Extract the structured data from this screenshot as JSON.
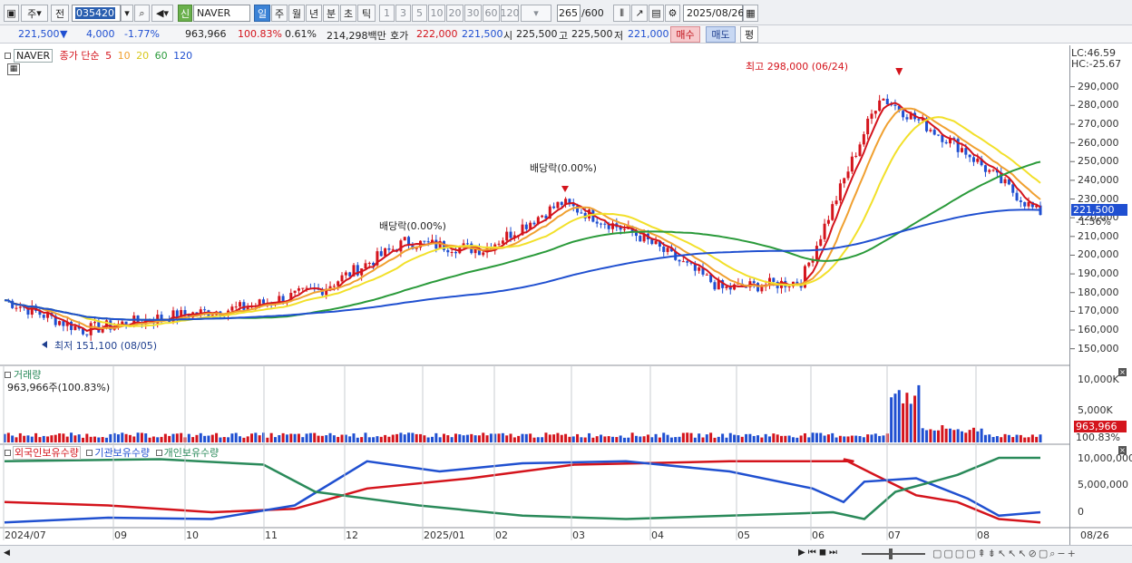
{
  "toolbar": {
    "period_main": "주",
    "prev_label": "전",
    "code": "035420",
    "stock_badge": "신",
    "stock_name": "NAVER",
    "period_tabs": [
      "일",
      "주",
      "월",
      "년",
      "분",
      "초",
      "틱"
    ],
    "intervals": [
      "1",
      "3",
      "5",
      "10",
      "20",
      "30",
      "60",
      "120"
    ],
    "count": "265",
    "count_total": "/600",
    "date": "2025/08/26"
  },
  "info": {
    "price": "221,500",
    "change_arrow": "▼",
    "change": "4,000",
    "change_pct": "-1.77%",
    "volume": "963,966",
    "volume_ratio": "100.83%",
    "turnover_pct": "0.61%",
    "amount": "214,298백만",
    "hoga_label": "호가",
    "ask": "222,000",
    "bid": "221,500",
    "open_label": "시",
    "open": "225,500",
    "high_label": "고",
    "high": "225,500",
    "low_label": "저",
    "low": "221,000",
    "buy_label": "매수",
    "sell_label": "매도",
    "eval_label": "평"
  },
  "price_panel": {
    "stock": "NAVER",
    "ma_label": "종가 단순",
    "ma_periods": [
      "5",
      "10",
      "20",
      "60",
      "120"
    ],
    "ma_colors": [
      "#d4141c",
      "#f0a030",
      "#f2e02a",
      "#2a9a3a",
      "#2050d0"
    ],
    "lc": "LC:46.59",
    "hc": "HC:-25.67",
    "high_annot": "최고 298,000 (06/24)",
    "low_annot": "최저 151,100 (08/05)",
    "dividend1": "배당락(0.00%)",
    "dividend2": "배당락(0.00%)",
    "current_price_tag": "221,500",
    "current_pct_tag": "-1.56%",
    "y_ticks": [
      "290,000",
      "280,000",
      "270,000",
      "260,000",
      "250,000",
      "240,000",
      "230,000",
      "220,000",
      "210,000",
      "200,000",
      "190,000",
      "180,000",
      "170,000",
      "160,000",
      "150,000"
    ]
  },
  "volume_panel": {
    "title": "거래량",
    "value": "963,966주(100.83%)",
    "y_ticks": [
      "10,000K",
      "5,000K"
    ],
    "tag_value": "963,966",
    "tag_pct": "100.83%"
  },
  "holding_panel": {
    "series_labels": [
      "외국인보유수량",
      "기관보유수량",
      "개인보유수량"
    ],
    "y_ticks": [
      "10,000,000",
      "5,000,000",
      "0"
    ]
  },
  "x_axis": [
    "2024/07",
    "09",
    "10",
    "11",
    "12",
    "2025/01",
    "02",
    "03",
    "04",
    "05",
    "06",
    "07",
    "08",
    "08/26"
  ],
  "colors": {
    "up": "#d4141c",
    "down": "#1f4fd1",
    "foreign": "#2050d0",
    "institution": "#d4141c",
    "individual": "#2a8a5a"
  },
  "chart_data": {
    "type": "line",
    "title": "NAVER",
    "series": [
      {
        "name": "종가",
        "x": [
          "2024/07",
          "2024/08",
          "2024/09",
          "2024/10",
          "2024/11",
          "2024/12",
          "2025/01",
          "2025/02",
          "2025/03",
          "2025/04",
          "2025/05",
          "2025/06",
          "2025/07",
          "2025/08/26"
        ],
        "values": [
          176000,
          160000,
          167000,
          172000,
          182000,
          207000,
          203000,
          228000,
          210000,
          182000,
          186000,
          285000,
          257000,
          221500
        ]
      }
    ],
    "ylim": [
      145000,
      300000
    ],
    "annotations": [
      "최고 298,000 (06/24)",
      "최저 151,100 (08/05)"
    ]
  }
}
